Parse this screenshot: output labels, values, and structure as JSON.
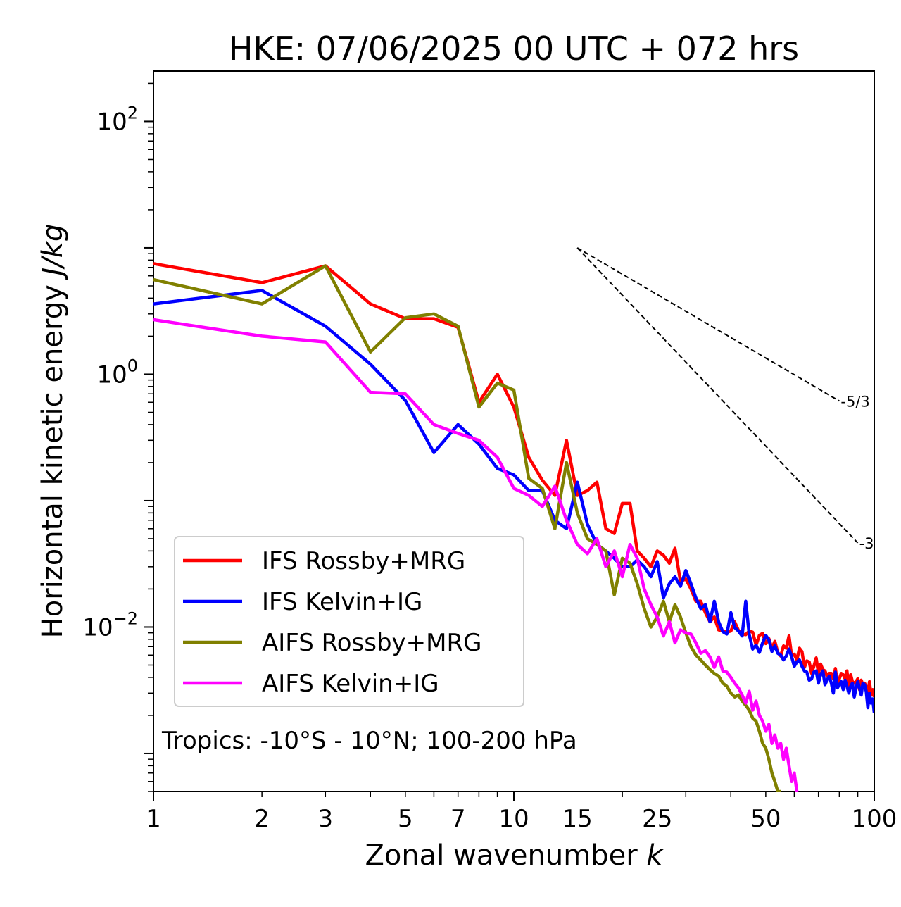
{
  "chart_data": {
    "type": "line",
    "title": "HKE: 07/06/2025 00 UTC + 072 hrs",
    "xlabel": "Zonal wavenumber",
    "xlabel_symbol": "k",
    "ylabel": "Horizontal kinetic energy",
    "ylabel_units": "J/kg",
    "xscale": "log",
    "yscale": "log",
    "xlim": [
      1,
      100
    ],
    "ylim": [
      0.0005,
      250
    ],
    "x_ticks": [
      1,
      2,
      3,
      5,
      7,
      10,
      15,
      25,
      50,
      100
    ],
    "y_ticks": [
      {
        "value": 0.01,
        "base": "10",
        "exp": "−2"
      },
      {
        "value": 1,
        "base": "10",
        "exp": "0"
      },
      {
        "value": 100,
        "base": "10",
        "exp": "2"
      }
    ],
    "grid": false,
    "legend_position": "lower-left",
    "annotation": "Tropics: -10°S - 10°N; 100-200 hPa",
    "reference_slopes": [
      {
        "label": "-5/3",
        "slope": -1.6667,
        "x0": 15,
        "x1": 80,
        "y0": 10.0
      },
      {
        "label": "-3",
        "slope": -3,
        "x0": 15,
        "x1": 90,
        "y0": 10.0
      }
    ],
    "series": [
      {
        "name": "IFS Rossby+MRG",
        "color": "#ff0000",
        "x": [
          1,
          2,
          3,
          4,
          5,
          6,
          7,
          8,
          9,
          10,
          11,
          12,
          13,
          14,
          15,
          16,
          17,
          18,
          19,
          20,
          21,
          22,
          23,
          24,
          25,
          26,
          27,
          28,
          29,
          30,
          31,
          32,
          33,
          34,
          35,
          36,
          37,
          38,
          39,
          40,
          41,
          42,
          43,
          44,
          45,
          46,
          47,
          48,
          49,
          50,
          51,
          52,
          53,
          54,
          55,
          56,
          57,
          58,
          59,
          60,
          61,
          62,
          63,
          64,
          65,
          66,
          67,
          68,
          69,
          70,
          71,
          72,
          73,
          74,
          75,
          76,
          77,
          78,
          79,
          80,
          81,
          82,
          83,
          84,
          85,
          86,
          87,
          88,
          89,
          90,
          91,
          92,
          93,
          94,
          95,
          96,
          97,
          98,
          99,
          100
        ],
        "y": [
          7.5,
          5.3,
          7.2,
          3.6,
          2.75,
          2.75,
          2.35,
          0.6,
          1.0,
          0.55,
          0.22,
          0.145,
          0.11,
          0.3,
          0.11,
          0.12,
          0.14,
          0.06,
          0.055,
          0.095,
          0.095,
          0.04,
          0.035,
          0.03,
          0.04,
          0.037,
          0.032,
          0.042,
          0.023,
          0.024,
          0.02,
          0.016,
          0.016,
          0.013,
          0.011,
          0.012,
          0.0095,
          0.0093,
          0.0091,
          0.0093,
          0.011,
          0.0094,
          0.0088,
          0.0087,
          0.0093,
          0.0091,
          0.0072,
          0.0086,
          0.0089,
          0.0074,
          0.0081,
          0.0068,
          0.0077,
          0.0063,
          0.0059,
          0.0071,
          0.0068,
          0.0085,
          0.0059,
          0.0061,
          0.0055,
          0.0068,
          0.0064,
          0.0048,
          0.0054,
          0.0053,
          0.0043,
          0.0049,
          0.0057,
          0.0043,
          0.0051,
          0.0046,
          0.0045,
          0.0041,
          0.0043,
          0.0043,
          0.0039,
          0.0047,
          0.0036,
          0.0039,
          0.0043,
          0.0042,
          0.0039,
          0.0045,
          0.0034,
          0.0042,
          0.0037,
          0.0036,
          0.0037,
          0.0039,
          0.0032,
          0.0038,
          0.0035,
          0.0036,
          0.0034,
          0.0029,
          0.0037,
          0.0029,
          0.0032,
          0.0028
        ]
      },
      {
        "name": "IFS Kelvin+IG",
        "color": "#0000ff",
        "x": [
          1,
          2,
          3,
          4,
          5,
          6,
          7,
          8,
          9,
          10,
          11,
          12,
          13,
          14,
          15,
          16,
          17,
          18,
          19,
          20,
          21,
          22,
          23,
          24,
          25,
          26,
          27,
          28,
          29,
          30,
          31,
          32,
          33,
          34,
          35,
          36,
          37,
          38,
          39,
          40,
          41,
          42,
          43,
          44,
          45,
          46,
          47,
          48,
          49,
          50,
          51,
          52,
          53,
          54,
          55,
          56,
          57,
          58,
          59,
          60,
          61,
          62,
          63,
          64,
          65,
          66,
          67,
          68,
          69,
          70,
          71,
          72,
          73,
          74,
          75,
          76,
          77,
          78,
          79,
          80,
          81,
          82,
          83,
          84,
          85,
          86,
          87,
          88,
          89,
          90,
          91,
          92,
          93,
          94,
          95,
          96,
          97,
          98,
          99,
          100
        ],
        "y": [
          3.6,
          4.6,
          2.4,
          1.2,
          0.62,
          0.24,
          0.4,
          0.28,
          0.18,
          0.16,
          0.12,
          0.12,
          0.07,
          0.06,
          0.14,
          0.065,
          0.045,
          0.04,
          0.035,
          0.03,
          0.03,
          0.034,
          0.03,
          0.025,
          0.033,
          0.017,
          0.022,
          0.025,
          0.021,
          0.028,
          0.022,
          0.017,
          0.014,
          0.015,
          0.011,
          0.016,
          0.011,
          0.0092,
          0.0088,
          0.013,
          0.0099,
          0.0093,
          0.0085,
          0.016,
          0.0087,
          0.0067,
          0.0072,
          0.0063,
          0.0075,
          0.0086,
          0.0079,
          0.0064,
          0.0071,
          0.0062,
          0.006,
          0.0055,
          0.0059,
          0.0067,
          0.0058,
          0.0049,
          0.0053,
          0.0055,
          0.0049,
          0.0045,
          0.0044,
          0.0038,
          0.0039,
          0.0044,
          0.0045,
          0.0036,
          0.0042,
          0.0045,
          0.0035,
          0.0038,
          0.0041,
          0.0036,
          0.003,
          0.0044,
          0.0033,
          0.0035,
          0.0037,
          0.0032,
          0.0038,
          0.0034,
          0.003,
          0.0034,
          0.0036,
          0.0028,
          0.0033,
          0.0037,
          0.0033,
          0.0029,
          0.0036,
          0.0035,
          0.0031,
          0.0023,
          0.003,
          0.0025,
          0.0027,
          0.0021
        ]
      },
      {
        "name": "AIFS Rossby+MRG",
        "color": "#808000",
        "x": [
          1,
          2,
          3,
          4,
          5,
          6,
          7,
          8,
          9,
          10,
          11,
          12,
          13,
          14,
          15,
          16,
          17,
          18,
          19,
          20,
          21,
          22,
          23,
          24,
          25,
          26,
          27,
          28,
          29,
          30,
          31,
          32,
          33,
          34,
          35,
          36,
          37,
          38,
          39,
          40,
          41,
          42,
          43,
          44,
          45,
          46,
          47,
          48,
          49,
          50,
          51,
          52,
          53,
          54,
          55
        ],
        "y": [
          5.6,
          3.6,
          7.2,
          1.5,
          2.8,
          3.0,
          2.4,
          0.55,
          0.85,
          0.75,
          0.15,
          0.125,
          0.06,
          0.2,
          0.08,
          0.05,
          0.045,
          0.04,
          0.018,
          0.035,
          0.032,
          0.022,
          0.014,
          0.01,
          0.012,
          0.016,
          0.011,
          0.015,
          0.012,
          0.009,
          0.007,
          0.006,
          0.0055,
          0.005,
          0.0046,
          0.0043,
          0.0041,
          0.0036,
          0.0034,
          0.003,
          0.0028,
          0.0029,
          0.0026,
          0.0024,
          0.0022,
          0.0019,
          0.0018,
          0.0015,
          0.0012,
          0.0011,
          0.0009,
          0.0007,
          0.0006,
          0.0005,
          0.0005
        ]
      },
      {
        "name": "AIFS Kelvin+IG",
        "color": "#ff00ff",
        "x": [
          1,
          2,
          3,
          4,
          5,
          6,
          7,
          8,
          9,
          10,
          11,
          12,
          13,
          14,
          15,
          16,
          17,
          18,
          19,
          20,
          21,
          22,
          23,
          24,
          25,
          26,
          27,
          28,
          29,
          30,
          31,
          32,
          33,
          34,
          35,
          36,
          37,
          38,
          39,
          40,
          41,
          42,
          43,
          44,
          45,
          46,
          47,
          48,
          49,
          50,
          51,
          52,
          53,
          54,
          55,
          56,
          57,
          58,
          59,
          60,
          61
        ],
        "y": [
          2.7,
          2.0,
          1.8,
          0.72,
          0.7,
          0.4,
          0.34,
          0.3,
          0.22,
          0.125,
          0.11,
          0.09,
          0.13,
          0.07,
          0.045,
          0.038,
          0.05,
          0.03,
          0.04,
          0.025,
          0.045,
          0.035,
          0.02,
          0.015,
          0.012,
          0.0085,
          0.011,
          0.0075,
          0.0095,
          0.009,
          0.0088,
          0.0075,
          0.0062,
          0.0065,
          0.0058,
          0.0048,
          0.0058,
          0.0045,
          0.0044,
          0.004,
          0.0036,
          0.0033,
          0.0029,
          0.0025,
          0.0031,
          0.0022,
          0.0026,
          0.002,
          0.0018,
          0.0015,
          0.0017,
          0.0012,
          0.0014,
          0.0011,
          0.0012,
          0.0009,
          0.0011,
          0.0008,
          0.0006,
          0.0007,
          0.0005
        ]
      }
    ]
  }
}
